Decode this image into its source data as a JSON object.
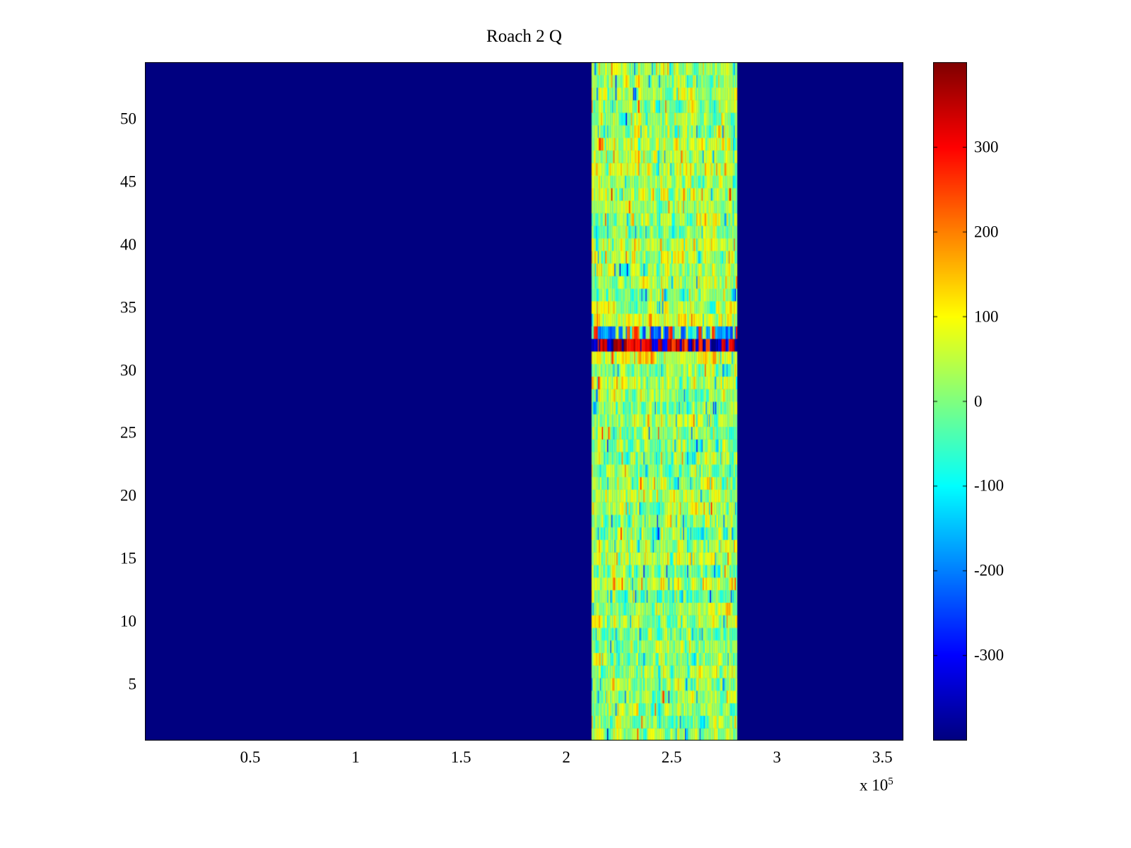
{
  "chart_data": {
    "type": "heatmap",
    "title": "Roach 2 Q",
    "xlabel": "",
    "ylabel": "",
    "colormap": "jet",
    "x_range": [
      0,
      360000
    ],
    "x_ticks": [
      50000,
      100000,
      150000,
      200000,
      250000,
      300000,
      350000
    ],
    "x_tick_labels": [
      "0.5",
      "1",
      "1.5",
      "2",
      "2.5",
      "3",
      "3.5"
    ],
    "x_exponent": {
      "prefix": "x 10",
      "exp": "5"
    },
    "y_ticks": [
      5,
      10,
      15,
      20,
      25,
      30,
      35,
      40,
      45,
      50
    ],
    "y_tick_labels": [
      "5",
      "10",
      "15",
      "20",
      "25",
      "30",
      "35",
      "40",
      "45",
      "50"
    ],
    "rows": 54,
    "value_range": [
      -400,
      400
    ],
    "background_value": -400,
    "active_band": {
      "x_start": 212000,
      "x_end": 281000,
      "columns": 140,
      "base_mean": 15,
      "base_row_std": 18,
      "warm_row_probability": 0.15,
      "warm_row_boost": 35,
      "noise_std": 55,
      "column_correlation": 0.55,
      "streak_probability": 0.04,
      "cold_streak_value": -185,
      "hot_streak_value": 150
    },
    "anomalies": [
      {
        "row": 32,
        "type": "saturated",
        "hot_fraction": 0.55,
        "hot_range": [
          230,
          390
        ],
        "cold_range": [
          -400,
          -280
        ]
      },
      {
        "row": 33,
        "type": "mixed",
        "cold_fraction": 0.5,
        "cold_range": [
          -270,
          -110
        ],
        "hot_fraction": 0.2,
        "hot_range": [
          140,
          310
        ],
        "mid_mean": 20,
        "mid_std": 50
      }
    ],
    "noise_seed": 20240614,
    "colorbar": {
      "ticks": [
        300,
        200,
        100,
        0,
        -100,
        -200,
        -300
      ],
      "tick_labels": [
        "300",
        "200",
        "100",
        "0",
        "-100",
        "-200",
        "-300"
      ]
    }
  }
}
